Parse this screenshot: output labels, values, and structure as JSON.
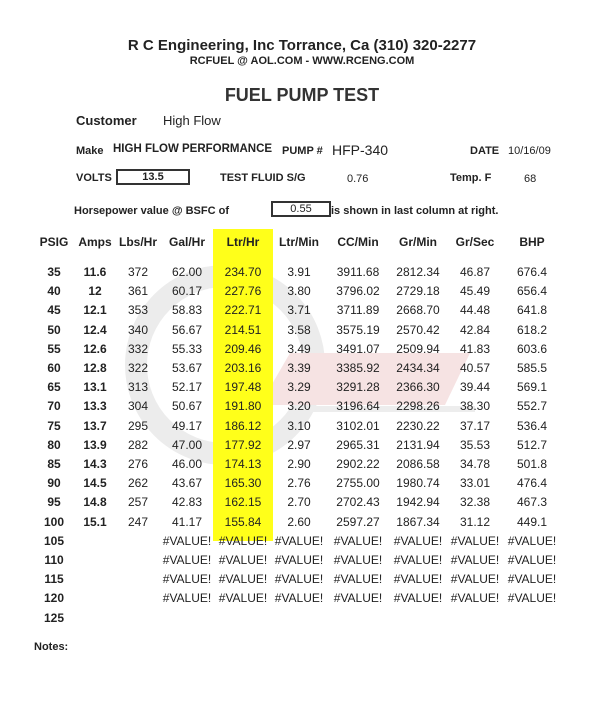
{
  "header": {
    "company": "R C Engineering, Inc  Torrance,  Ca  (310) 320-2277",
    "contact": "RCFUEL @ AOL.COM -  WWW.RCENG.COM",
    "title": "FUEL PUMP TEST"
  },
  "watermark": {
    "text": "High Flow",
    "sub": "FUEL SYSTEMS"
  },
  "info": {
    "customer_label": "Customer",
    "customer": "High Flow",
    "make_label": "Make",
    "make": "HIGH FLOW PERFORMANCE",
    "pump_label": "PUMP #",
    "pump": "HFP-340",
    "date_label": "DATE",
    "date": "10/16/09",
    "volts_label": "VOLTS",
    "volts": "13.5",
    "fluid_label": "TEST FLUID  S/G",
    "fluid_sg": "0.76",
    "temp_label": "Temp.  F",
    "temp": "68",
    "hp_label": "Horsepower value @  BSFC of",
    "bsfc": "0.55",
    "hp_suffix": "is shown in last column at right."
  },
  "table": {
    "columns": [
      "PSIG",
      "Amps",
      "Lbs/Hr",
      "Gal/Hr",
      "Ltr/Hr",
      "Ltr/Min",
      "CC/Min",
      "Gr/Min",
      "Gr/Sec",
      "BHP"
    ],
    "highlight_color": "#ffff1a",
    "rows": [
      [
        "35",
        "11.6",
        "372",
        "62.00",
        "234.70",
        "3.91",
        "3911.68",
        "2812.34",
        "46.87",
        "676.4"
      ],
      [
        "40",
        "12",
        "361",
        "60.17",
        "227.76",
        "3.80",
        "3796.02",
        "2729.18",
        "45.49",
        "656.4"
      ],
      [
        "45",
        "12.1",
        "353",
        "58.83",
        "222.71",
        "3.71",
        "3711.89",
        "2668.70",
        "44.48",
        "641.8"
      ],
      [
        "50",
        "12.4",
        "340",
        "56.67",
        "214.51",
        "3.58",
        "3575.19",
        "2570.42",
        "42.84",
        "618.2"
      ],
      [
        "55",
        "12.6",
        "332",
        "55.33",
        "209.46",
        "3.49",
        "3491.07",
        "2509.94",
        "41.83",
        "603.6"
      ],
      [
        "60",
        "12.8",
        "322",
        "53.67",
        "203.16",
        "3.39",
        "3385.92",
        "2434.34",
        "40.57",
        "585.5"
      ],
      [
        "65",
        "13.1",
        "313",
        "52.17",
        "197.48",
        "3.29",
        "3291.28",
        "2366.30",
        "39.44",
        "569.1"
      ],
      [
        "70",
        "13.3",
        "304",
        "50.67",
        "191.80",
        "3.20",
        "3196.64",
        "2298.26",
        "38.30",
        "552.7"
      ],
      [
        "75",
        "13.7",
        "295",
        "49.17",
        "186.12",
        "3.10",
        "3102.01",
        "2230.22",
        "37.17",
        "536.4"
      ],
      [
        "80",
        "13.9",
        "282",
        "47.00",
        "177.92",
        "2.97",
        "2965.31",
        "2131.94",
        "35.53",
        "512.7"
      ],
      [
        "85",
        "14.3",
        "276",
        "46.00",
        "174.13",
        "2.90",
        "2902.22",
        "2086.58",
        "34.78",
        "501.8"
      ],
      [
        "90",
        "14.5",
        "262",
        "43.67",
        "165.30",
        "2.76",
        "2755.00",
        "1980.74",
        "33.01",
        "476.4"
      ],
      [
        "95",
        "14.8",
        "257",
        "42.83",
        "162.15",
        "2.70",
        "2702.43",
        "1942.94",
        "32.38",
        "467.3"
      ],
      [
        "100",
        "15.1",
        "247",
        "41.17",
        "155.84",
        "2.60",
        "2597.27",
        "1867.34",
        "31.12",
        "449.1"
      ],
      [
        "105",
        "",
        "",
        "#VALUE!",
        "#VALUE!",
        "#VALUE!",
        "#VALUE!",
        "#VALUE!",
        "#VALUE!",
        "#VALUE!"
      ],
      [
        "110",
        "",
        "",
        "#VALUE!",
        "#VALUE!",
        "#VALUE!",
        "#VALUE!",
        "#VALUE!",
        "#VALUE!",
        "#VALUE!"
      ],
      [
        "115",
        "",
        "",
        "#VALUE!",
        "#VALUE!",
        "#VALUE!",
        "#VALUE!",
        "#VALUE!",
        "#VALUE!",
        "#VALUE!"
      ],
      [
        "120",
        "",
        "",
        "#VALUE!",
        "#VALUE!",
        "#VALUE!",
        "#VALUE!",
        "#VALUE!",
        "#VALUE!",
        "#VALUE!"
      ],
      [
        "125",
        "",
        "",
        "",
        "",
        "",
        "",
        "",
        "",
        ""
      ]
    ]
  },
  "notes_label": "Notes:"
}
